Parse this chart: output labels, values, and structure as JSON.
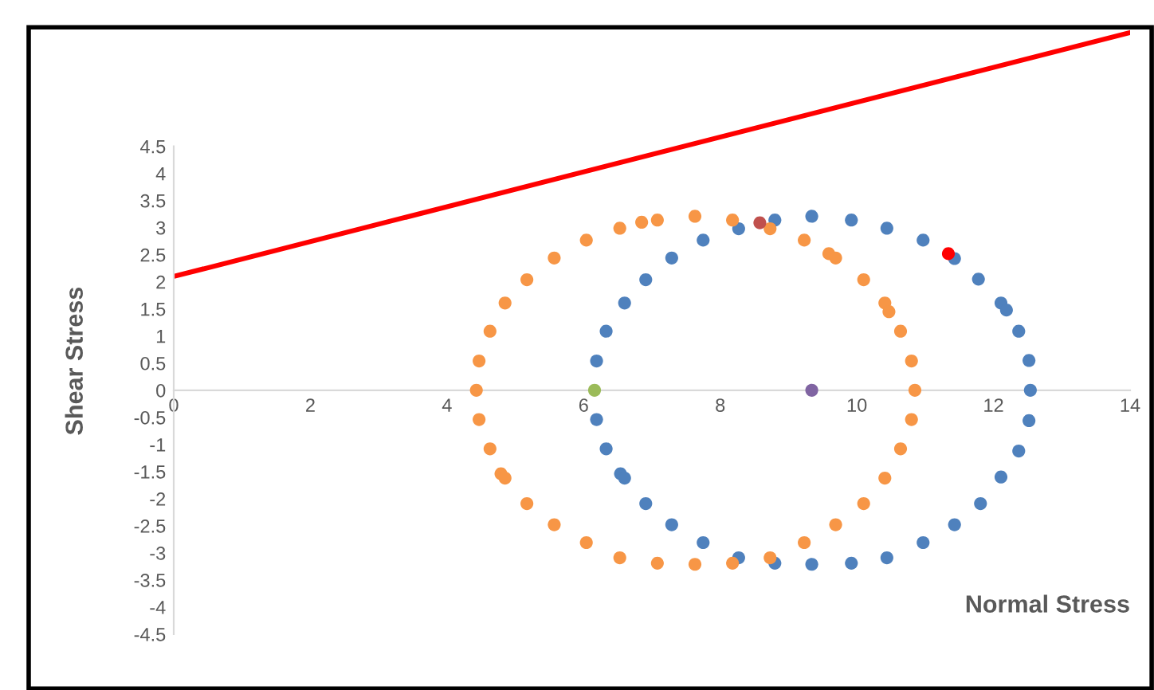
{
  "chart_data": {
    "type": "scatter",
    "xlabel": "Normal Stress",
    "ylabel": "Shear Stress",
    "xlim": [
      0,
      14
    ],
    "ylim": [
      -4.5,
      6.7
    ],
    "xticks": [
      0,
      2,
      4,
      6,
      8,
      10,
      12,
      14
    ],
    "yticks": [
      -4.5,
      -4,
      -3.5,
      -3,
      -2.5,
      -2,
      -1.5,
      -1,
      -0.5,
      0,
      0.5,
      1,
      1.5,
      2,
      2.5,
      3,
      3.5,
      4,
      4.5
    ],
    "grid": false,
    "legend": false,
    "marker": "circle",
    "series": [
      {
        "color": "#4f81bd",
        "x": [
          6.19,
          6.33,
          6.6,
          6.91,
          7.29,
          7.75,
          8.27,
          8.8,
          9.34,
          9.92,
          10.44,
          10.97,
          11.43,
          11.78,
          12.11,
          12.19,
          12.37,
          12.52,
          12.54,
          6.19,
          6.33,
          6.54,
          6.6,
          6.91,
          7.29,
          7.75,
          8.27,
          8.8,
          9.34,
          9.92,
          10.44,
          10.97,
          11.43,
          11.81,
          12.11,
          12.37,
          12.52
        ],
        "values": [
          0.54,
          1.09,
          1.61,
          2.04,
          2.44,
          2.77,
          2.98,
          3.14,
          3.21,
          3.14,
          2.99,
          2.77,
          2.43,
          2.05,
          1.61,
          1.48,
          1.09,
          0.55,
          0,
          -0.54,
          -1.08,
          -1.54,
          -1.62,
          -2.09,
          -2.48,
          -2.81,
          -3.09,
          -3.19,
          -3.21,
          -3.19,
          -3.09,
          -2.81,
          -2.48,
          -2.09,
          -1.6,
          -1.12,
          -0.56
        ]
      },
      {
        "color": "#f79646",
        "x": [
          4.43,
          4.47,
          4.63,
          4.85,
          5.17,
          5.57,
          6.04,
          6.53,
          6.85,
          7.08,
          7.63,
          8.18,
          8.73,
          9.23,
          9.59,
          9.69,
          10.1,
          10.41,
          10.47,
          10.64,
          10.8,
          10.85,
          4.47,
          4.63,
          4.79,
          4.85,
          5.17,
          5.57,
          6.04,
          6.53,
          7.08,
          7.63,
          8.18,
          8.73,
          9.23,
          9.69,
          10.1,
          10.41,
          10.64,
          10.8
        ],
        "values": [
          0,
          0.54,
          1.09,
          1.61,
          2.04,
          2.44,
          2.77,
          2.99,
          3.1,
          3.14,
          3.21,
          3.14,
          2.98,
          2.77,
          2.52,
          2.44,
          2.04,
          1.61,
          1.45,
          1.09,
          0.54,
          0,
          -0.54,
          -1.08,
          -1.54,
          -1.62,
          -2.09,
          -2.48,
          -2.81,
          -3.09,
          -3.19,
          -3.21,
          -3.19,
          -3.09,
          -2.81,
          -2.48,
          -2.09,
          -1.62,
          -1.08,
          -0.54
        ]
      },
      {
        "color": "#c0504d",
        "x": [
          8.58
        ],
        "values": [
          3.09
        ]
      },
      {
        "color": "#ff0000",
        "x": [
          11.34
        ],
        "values": [
          2.52
        ]
      },
      {
        "color": "#9bbb59",
        "x": [
          6.16
        ],
        "values": [
          0
        ]
      },
      {
        "color": "#8064a2",
        "x": [
          9.34
        ],
        "values": [
          0
        ]
      },
      {
        "type": "line",
        "marker": "none",
        "color": "#ff0000",
        "x": [
          0,
          14
        ],
        "values": [
          2.1,
          6.6
        ]
      }
    ]
  }
}
